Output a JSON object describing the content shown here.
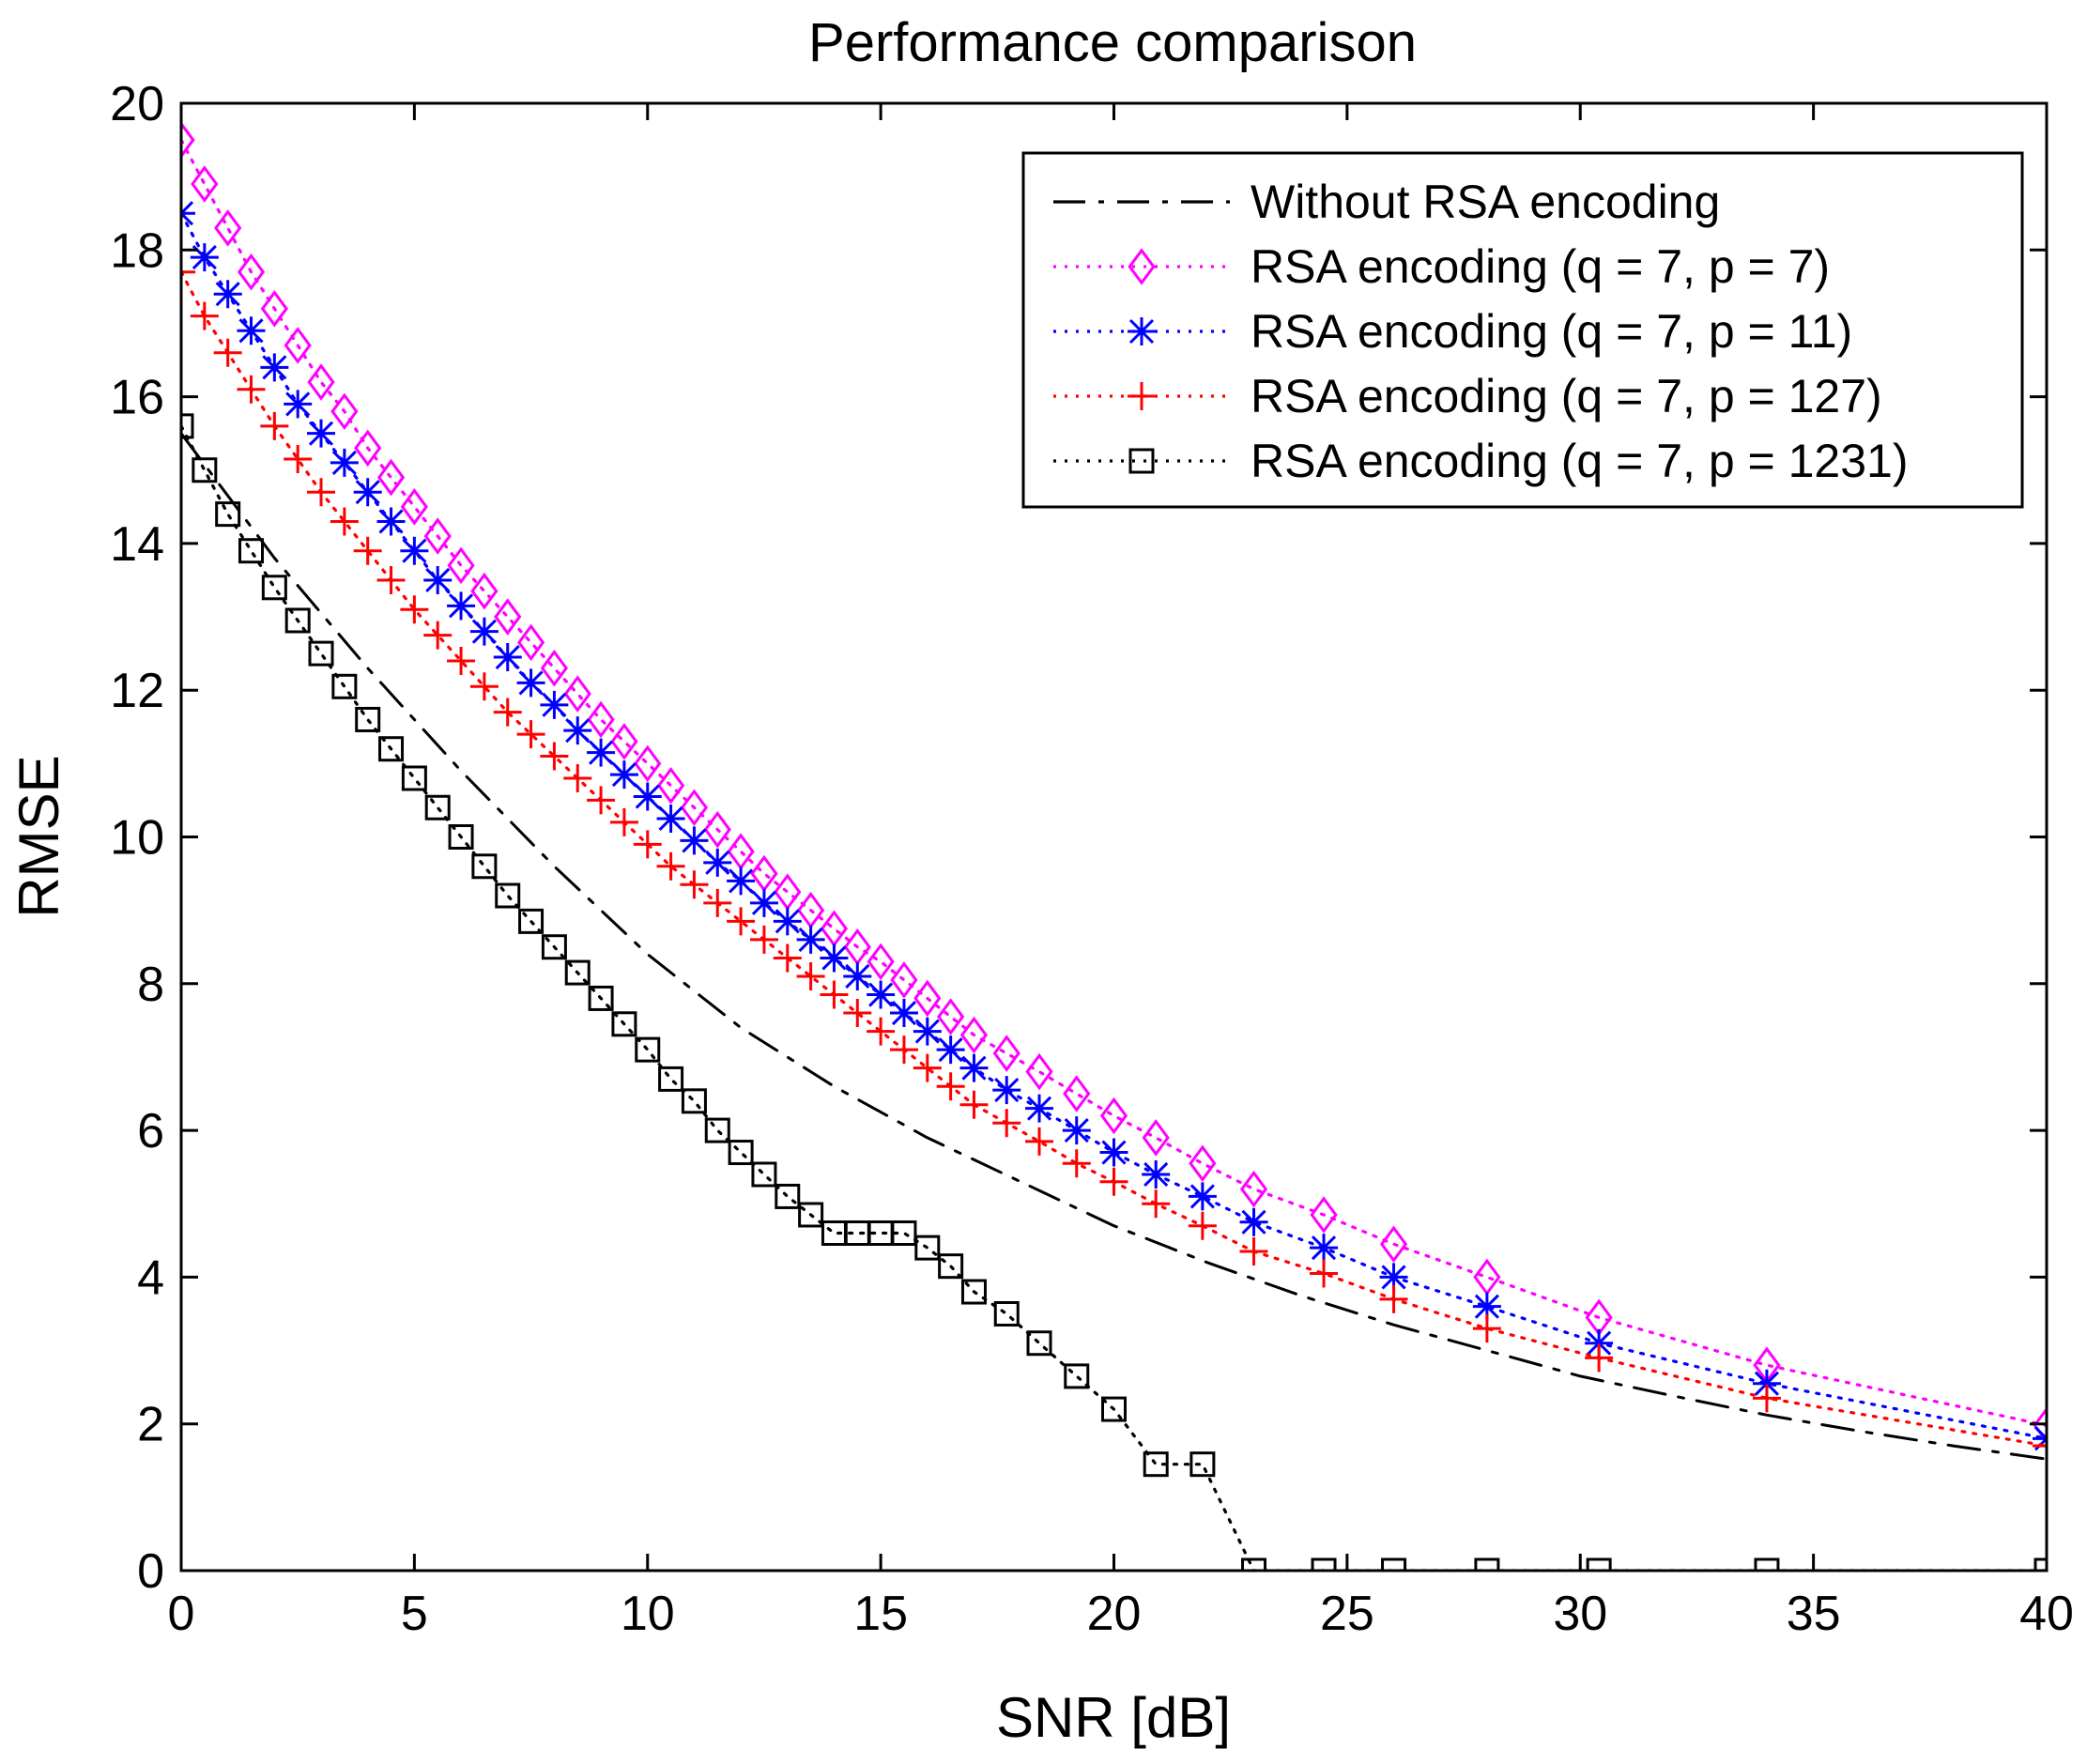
{
  "chart_data": {
    "type": "line",
    "title": "Performance comparison",
    "xlabel": "SNR [dB]",
    "ylabel": "RMSE",
    "xlim": [
      0,
      40
    ],
    "ylim": [
      0,
      20
    ],
    "xticks": [
      0,
      5,
      10,
      15,
      20,
      25,
      30,
      35,
      40
    ],
    "yticks": [
      0,
      2,
      4,
      6,
      8,
      10,
      12,
      14,
      16,
      18,
      20
    ],
    "grid": false,
    "legend_position": "top-right",
    "series": [
      {
        "name": "Without RSA encoding",
        "color": "#000000",
        "line_style": "dashdot",
        "marker": "none",
        "x": [
          0,
          2,
          4,
          6,
          8,
          10,
          12,
          14,
          16,
          18,
          20,
          22,
          24,
          26,
          28,
          30,
          32,
          34,
          36,
          38,
          40
        ],
        "y": [
          15.5,
          13.8,
          12.3,
          10.9,
          9.6,
          8.4,
          7.4,
          6.6,
          5.9,
          5.3,
          4.7,
          4.2,
          3.75,
          3.35,
          3.0,
          2.65,
          2.38,
          2.12,
          1.9,
          1.7,
          1.52
        ]
      },
      {
        "name": "RSA encoding (q = 7, p = 7)",
        "color": "#ff00ff",
        "line_style": "dotted",
        "marker": "diamond",
        "x": [
          0,
          0.5,
          1,
          1.5,
          2,
          2.5,
          3,
          3.5,
          4,
          4.5,
          5,
          5.5,
          6,
          6.5,
          7,
          7.5,
          8,
          8.5,
          9,
          9.5,
          10,
          10.5,
          11,
          11.5,
          12,
          12.5,
          13,
          13.5,
          14,
          14.5,
          15,
          15.5,
          16,
          16.5,
          17,
          17.7,
          18.4,
          19.2,
          20,
          20.9,
          21.9,
          23,
          24.5,
          26,
          28,
          30.4,
          34,
          40
        ],
        "y": [
          19.5,
          18.9,
          18.3,
          17.7,
          17.2,
          16.7,
          16.2,
          15.8,
          15.3,
          14.9,
          14.5,
          14.1,
          13.7,
          13.35,
          13.0,
          12.65,
          12.3,
          11.95,
          11.6,
          11.3,
          11.0,
          10.7,
          10.4,
          10.1,
          9.8,
          9.5,
          9.25,
          9.0,
          8.75,
          8.5,
          8.3,
          8.05,
          7.8,
          7.55,
          7.3,
          7.05,
          6.8,
          6.5,
          6.2,
          5.9,
          5.55,
          5.2,
          4.85,
          4.45,
          4.0,
          3.45,
          2.8,
          1.98
        ]
      },
      {
        "name": "RSA encoding (q = 7, p = 11)",
        "color": "#0000ff",
        "line_style": "dotted",
        "marker": "asterisk",
        "x": [
          0,
          0.5,
          1,
          1.5,
          2,
          2.5,
          3,
          3.5,
          4,
          4.5,
          5,
          5.5,
          6,
          6.5,
          7,
          7.5,
          8,
          8.5,
          9,
          9.5,
          10,
          10.5,
          11,
          11.5,
          12,
          12.5,
          13,
          13.5,
          14,
          14.5,
          15,
          15.5,
          16,
          16.5,
          17,
          17.7,
          18.4,
          19.2,
          20,
          20.9,
          21.9,
          23,
          24.5,
          26,
          28,
          30.4,
          34,
          40
        ],
        "y": [
          18.5,
          17.9,
          17.4,
          16.9,
          16.4,
          15.9,
          15.5,
          15.1,
          14.7,
          14.3,
          13.9,
          13.5,
          13.15,
          12.8,
          12.45,
          12.1,
          11.8,
          11.45,
          11.15,
          10.85,
          10.55,
          10.25,
          9.95,
          9.65,
          9.4,
          9.1,
          8.85,
          8.6,
          8.35,
          8.1,
          7.85,
          7.6,
          7.35,
          7.1,
          6.85,
          6.55,
          6.3,
          6.0,
          5.7,
          5.4,
          5.1,
          4.75,
          4.4,
          4.0,
          3.6,
          3.1,
          2.55,
          1.8
        ]
      },
      {
        "name": "RSA encoding (q = 7, p = 127)",
        "color": "#ff0000",
        "line_style": "dotted",
        "marker": "plus",
        "x": [
          0,
          0.5,
          1,
          1.5,
          2,
          2.5,
          3,
          3.5,
          4,
          4.5,
          5,
          5.5,
          6,
          6.5,
          7,
          7.5,
          8,
          8.5,
          9,
          9.5,
          10,
          10.5,
          11,
          11.5,
          12,
          12.5,
          13,
          13.5,
          14,
          14.5,
          15,
          15.5,
          16,
          16.5,
          17,
          17.7,
          18.4,
          19.2,
          20,
          20.9,
          21.9,
          23,
          24.5,
          26,
          28,
          30.4,
          34,
          40
        ],
        "y": [
          17.7,
          17.1,
          16.6,
          16.1,
          15.6,
          15.15,
          14.7,
          14.3,
          13.9,
          13.5,
          13.1,
          12.75,
          12.4,
          12.05,
          11.7,
          11.4,
          11.1,
          10.8,
          10.5,
          10.2,
          9.9,
          9.6,
          9.35,
          9.1,
          8.85,
          8.6,
          8.35,
          8.1,
          7.85,
          7.6,
          7.35,
          7.1,
          6.85,
          6.6,
          6.35,
          6.1,
          5.85,
          5.55,
          5.3,
          5.0,
          4.7,
          4.35,
          4.05,
          3.7,
          3.3,
          2.9,
          2.35,
          1.7
        ]
      },
      {
        "name": "RSA encoding (q = 7, p = 1231)",
        "color": "#000000",
        "line_style": "dotted",
        "marker": "square",
        "x": [
          0,
          0.5,
          1,
          1.5,
          2,
          2.5,
          3,
          3.5,
          4,
          4.5,
          5,
          5.5,
          6,
          6.5,
          7,
          7.5,
          8,
          8.5,
          9,
          9.5,
          10,
          10.5,
          11,
          11.5,
          12,
          12.5,
          13,
          13.5,
          14,
          14.5,
          15,
          15.5,
          16,
          16.5,
          17,
          17.7,
          18.4,
          19.2,
          20,
          20.9,
          21.9,
          23,
          24.5,
          26,
          28,
          30.4,
          34,
          40
        ],
        "y": [
          15.6,
          15.0,
          14.4,
          13.9,
          13.4,
          12.95,
          12.5,
          12.05,
          11.6,
          11.2,
          10.8,
          10.4,
          10.0,
          9.6,
          9.2,
          8.85,
          8.5,
          8.15,
          7.8,
          7.45,
          7.1,
          6.7,
          6.4,
          6.0,
          5.7,
          5.4,
          5.1,
          4.85,
          4.6,
          4.6,
          4.6,
          4.6,
          4.4,
          4.15,
          3.8,
          3.5,
          3.1,
          2.65,
          2.2,
          1.45,
          1.45,
          0,
          0,
          0,
          0,
          0,
          0,
          0
        ]
      }
    ]
  }
}
